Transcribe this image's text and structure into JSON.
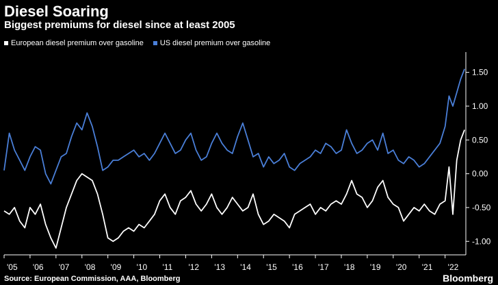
{
  "title": "Diesel Soaring",
  "subtitle": "Biggest premiums for diesel since at least 2005",
  "source": "Source: European Commission, AAA, Bloomberg",
  "logo": "Bloomberg",
  "colors": {
    "background": "#000000",
    "eu": "#ffffff",
    "us": "#4a7fd8",
    "axis": "#ffffff"
  },
  "chart_data": {
    "type": "line",
    "title": "Diesel Soaring",
    "subtitle": "Biggest premiums for diesel since at least 2005",
    "xlabel": "",
    "ylabel": "",
    "ylim": [
      -1.2,
      1.8
    ],
    "xlim": [
      2005.0,
      2022.8
    ],
    "yticks": [
      1.5,
      1.0,
      0.5,
      0.0,
      -0.5,
      -1.0
    ],
    "ytick_labels": [
      "1.50",
      "1.00",
      "0.50",
      "0.00",
      "-0.50",
      "-1.00"
    ],
    "xticks": [
      2005,
      2006,
      2007,
      2008,
      2009,
      2010,
      2011,
      2012,
      2013,
      2014,
      2015,
      2016,
      2017,
      2018,
      2019,
      2020,
      2021,
      2022
    ],
    "xtick_labels": [
      "'05",
      "'06",
      "'07",
      "'08",
      "'09",
      "'10",
      "'11",
      "'12",
      "'13",
      "'14",
      "'15",
      "'16",
      "'17",
      "'18",
      "'19",
      "'20",
      "'21",
      "'22"
    ],
    "grid": false,
    "legend_position": "top-left",
    "series": [
      {
        "name": "European diesel premium over gasoline",
        "color": "#ffffff",
        "x": [
          2005.0,
          2005.2,
          2005.4,
          2005.6,
          2005.8,
          2006.0,
          2006.2,
          2006.4,
          2006.6,
          2006.8,
          2007.0,
          2007.2,
          2007.4,
          2007.6,
          2007.8,
          2008.0,
          2008.2,
          2008.4,
          2008.6,
          2008.8,
          2009.0,
          2009.2,
          2009.4,
          2009.6,
          2009.8,
          2010.0,
          2010.2,
          2010.4,
          2010.6,
          2010.8,
          2011.0,
          2011.2,
          2011.4,
          2011.6,
          2011.8,
          2012.0,
          2012.2,
          2012.4,
          2012.6,
          2012.8,
          2013.0,
          2013.2,
          2013.4,
          2013.6,
          2013.8,
          2014.0,
          2014.2,
          2014.4,
          2014.6,
          2014.8,
          2015.0,
          2015.2,
          2015.4,
          2015.6,
          2015.8,
          2016.0,
          2016.2,
          2016.4,
          2016.6,
          2016.8,
          2017.0,
          2017.2,
          2017.4,
          2017.6,
          2017.8,
          2018.0,
          2018.2,
          2018.4,
          2018.6,
          2018.8,
          2019.0,
          2019.2,
          2019.4,
          2019.6,
          2019.8,
          2020.0,
          2020.2,
          2020.4,
          2020.6,
          2020.8,
          2021.0,
          2021.2,
          2021.4,
          2021.6,
          2021.8,
          2022.0,
          2022.15,
          2022.3,
          2022.45,
          2022.6,
          2022.75
        ],
        "values": [
          -0.55,
          -0.6,
          -0.5,
          -0.7,
          -0.8,
          -0.5,
          -0.6,
          -0.45,
          -0.75,
          -0.95,
          -1.1,
          -0.8,
          -0.5,
          -0.3,
          -0.1,
          0.0,
          -0.05,
          -0.1,
          -0.3,
          -0.6,
          -0.95,
          -1.0,
          -0.95,
          -0.85,
          -0.8,
          -0.85,
          -0.75,
          -0.8,
          -0.7,
          -0.6,
          -0.4,
          -0.3,
          -0.5,
          -0.6,
          -0.4,
          -0.35,
          -0.25,
          -0.45,
          -0.55,
          -0.45,
          -0.3,
          -0.5,
          -0.6,
          -0.5,
          -0.35,
          -0.45,
          -0.55,
          -0.5,
          -0.3,
          -0.6,
          -0.75,
          -0.7,
          -0.6,
          -0.65,
          -0.7,
          -0.8,
          -0.6,
          -0.55,
          -0.5,
          -0.45,
          -0.6,
          -0.5,
          -0.55,
          -0.45,
          -0.4,
          -0.45,
          -0.3,
          -0.1,
          -0.3,
          -0.35,
          -0.5,
          -0.4,
          -0.2,
          -0.1,
          -0.35,
          -0.45,
          -0.5,
          -0.7,
          -0.6,
          -0.5,
          -0.55,
          -0.45,
          -0.55,
          -0.6,
          -0.45,
          -0.4,
          0.1,
          -0.6,
          0.2,
          0.5,
          0.65
        ]
      },
      {
        "name": "US diesel premium over gasoline",
        "color": "#4a7fd8",
        "x": [
          2005.0,
          2005.2,
          2005.4,
          2005.6,
          2005.8,
          2006.0,
          2006.2,
          2006.4,
          2006.6,
          2006.8,
          2007.0,
          2007.2,
          2007.4,
          2007.6,
          2007.8,
          2008.0,
          2008.2,
          2008.4,
          2008.6,
          2008.8,
          2009.0,
          2009.2,
          2009.4,
          2009.6,
          2009.8,
          2010.0,
          2010.2,
          2010.4,
          2010.6,
          2010.8,
          2011.0,
          2011.2,
          2011.4,
          2011.6,
          2011.8,
          2012.0,
          2012.2,
          2012.4,
          2012.6,
          2012.8,
          2013.0,
          2013.2,
          2013.4,
          2013.6,
          2013.8,
          2014.0,
          2014.2,
          2014.4,
          2014.6,
          2014.8,
          2015.0,
          2015.2,
          2015.4,
          2015.6,
          2015.8,
          2016.0,
          2016.2,
          2016.4,
          2016.6,
          2016.8,
          2017.0,
          2017.2,
          2017.4,
          2017.6,
          2017.8,
          2018.0,
          2018.2,
          2018.4,
          2018.6,
          2018.8,
          2019.0,
          2019.2,
          2019.4,
          2019.6,
          2019.8,
          2020.0,
          2020.2,
          2020.4,
          2020.6,
          2020.8,
          2021.0,
          2021.2,
          2021.4,
          2021.6,
          2021.8,
          2022.0,
          2022.15,
          2022.3,
          2022.45,
          2022.6,
          2022.75
        ],
        "values": [
          0.05,
          0.6,
          0.35,
          0.2,
          0.05,
          0.25,
          0.4,
          0.35,
          0.0,
          -0.15,
          0.05,
          0.25,
          0.3,
          0.55,
          0.75,
          0.65,
          0.9,
          0.7,
          0.4,
          0.05,
          0.1,
          0.2,
          0.2,
          0.25,
          0.3,
          0.35,
          0.25,
          0.3,
          0.2,
          0.3,
          0.45,
          0.6,
          0.45,
          0.3,
          0.35,
          0.5,
          0.6,
          0.35,
          0.2,
          0.25,
          0.45,
          0.6,
          0.45,
          0.35,
          0.3,
          0.55,
          0.75,
          0.5,
          0.25,
          0.3,
          0.1,
          0.25,
          0.15,
          0.2,
          0.3,
          0.1,
          0.05,
          0.15,
          0.2,
          0.25,
          0.35,
          0.3,
          0.45,
          0.4,
          0.3,
          0.35,
          0.65,
          0.45,
          0.3,
          0.35,
          0.45,
          0.5,
          0.35,
          0.6,
          0.3,
          0.35,
          0.2,
          0.15,
          0.25,
          0.2,
          0.1,
          0.15,
          0.25,
          0.35,
          0.45,
          0.7,
          1.15,
          1.0,
          1.2,
          1.4,
          1.55
        ]
      }
    ]
  }
}
